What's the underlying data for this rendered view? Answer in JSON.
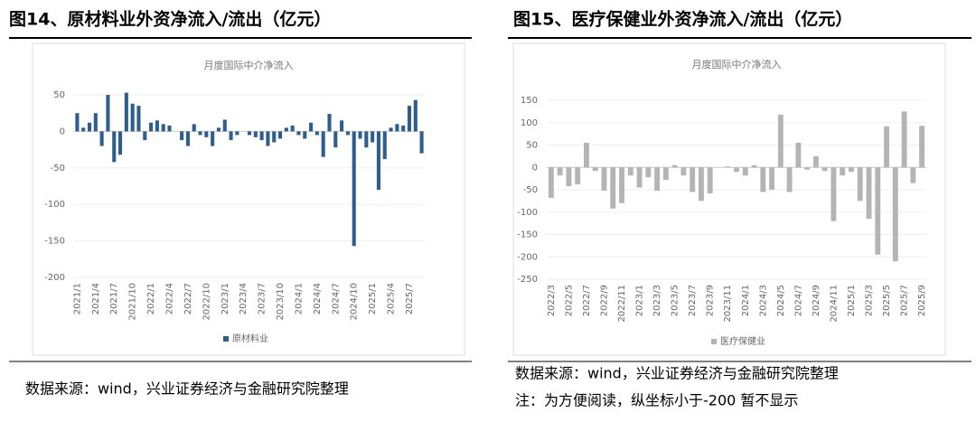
{
  "headers": [
    "图14、原材料业外资净流入/流出（亿元）",
    "图15、医疗保健业外资净流入/流出（亿元）"
  ],
  "footers": [
    "数据来源：wind，兴业证券经济与金融研究院整理",
    "数据来源：wind，兴业证券经济与金融研究院整理",
    "注：为方便阅读，纵坐标小于-200 暂不显示"
  ],
  "chart_data": [
    {
      "type": "bar",
      "title": "月度国际中介净流入",
      "color": "#2e5e8e",
      "categories": [
        "2021/1",
        null,
        null,
        "2021/4",
        null,
        null,
        "2021/7",
        null,
        null,
        "2021/10",
        null,
        null,
        "2022/1",
        null,
        null,
        "2022/4",
        null,
        null,
        "2022/7",
        null,
        null,
        "2022/10",
        null,
        null,
        "2023/1",
        null,
        null,
        "2023/4",
        null,
        null,
        "2023/7",
        null,
        null,
        "2023/10",
        null,
        null,
        "2024/1",
        null,
        null,
        "2024/4",
        null,
        null,
        "2024/7",
        null,
        null,
        "2024/10",
        null,
        null,
        "2025/1",
        null,
        null,
        "2025/4",
        null,
        null,
        "2025/7",
        null,
        null
      ],
      "series": [
        {
          "name": "原材料业",
          "color": "#2e5e8e",
          "values": [
            25,
            5,
            12,
            25,
            -20,
            50,
            -42,
            -32,
            53,
            38,
            35,
            -12,
            12,
            15,
            10,
            8,
            0,
            -12,
            -20,
            10,
            -5,
            -8,
            -20,
            5,
            16,
            -12,
            -5,
            0,
            -5,
            -8,
            -12,
            -20,
            -15,
            -10,
            5,
            8,
            -5,
            -10,
            12,
            -5,
            -35,
            24,
            -22,
            15,
            -5,
            -157,
            -10,
            -22,
            -15,
            -80,
            -38,
            5,
            10,
            8,
            35,
            43,
            -30
          ]
        }
      ],
      "ylim": [
        -200,
        50
      ],
      "yticks": [
        -200,
        -150,
        -100,
        -50,
        0,
        50
      ]
    },
    {
      "type": "bar",
      "title": "月度国际中介净流入",
      "color": "#b4b4b4",
      "categories": [
        "2022/3",
        null,
        "2022/5",
        null,
        "2022/7",
        null,
        "2022/9",
        null,
        "2022/11",
        null,
        "2023/1",
        null,
        "2023/3",
        null,
        "2023/5",
        null,
        "2023/7",
        null,
        "2023/9",
        null,
        "2023/11",
        null,
        "2024/1",
        null,
        "2024/3",
        null,
        "2024/5",
        null,
        "2024/7",
        null,
        "2024/9",
        null,
        "2024/11",
        null,
        "2025/1",
        null,
        "2025/3",
        null,
        "2025/5",
        null,
        "2025/7",
        null,
        "2025/9"
      ],
      "series": [
        {
          "name": "医疗保健业",
          "color": "#b4b4b4",
          "values": [
            -68,
            -18,
            -42,
            -38,
            55,
            -8,
            -52,
            -92,
            -80,
            -18,
            -45,
            -22,
            -52,
            -28,
            5,
            -18,
            -55,
            -75,
            -58,
            0,
            2,
            -10,
            -18,
            5,
            -55,
            -50,
            118,
            -55,
            55,
            -5,
            25,
            -8,
            -120,
            -18,
            -10,
            -75,
            -115,
            -195,
            92,
            -210,
            125,
            -35,
            93
          ]
        }
      ],
      "ylim": [
        -250,
        150
      ],
      "yticks": [
        -250,
        -200,
        -150,
        -100,
        -50,
        0,
        50,
        100,
        150
      ]
    }
  ]
}
